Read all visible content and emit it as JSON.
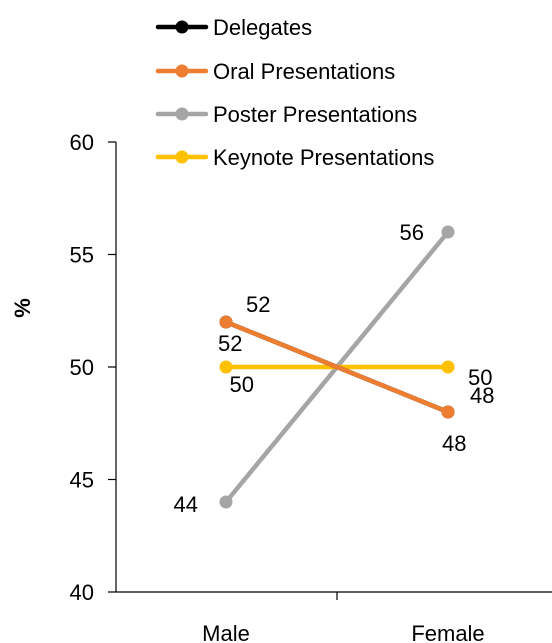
{
  "chart_data": {
    "type": "line",
    "title": "",
    "xlabel": "",
    "ylabel": "%",
    "categories": [
      "Male",
      "Female"
    ],
    "ylim": [
      40,
      60
    ],
    "yticks": [
      40,
      45,
      50,
      55,
      60
    ],
    "grid": false,
    "legend_position": "top",
    "series": [
      {
        "name": "Delegates",
        "values": [
          52,
          48
        ],
        "color": "#000000",
        "labels": [
          "52",
          "48"
        ]
      },
      {
        "name": "Oral Presentations",
        "values": [
          52,
          48
        ],
        "color": "#ED7D31",
        "labels": [
          "52",
          "48"
        ]
      },
      {
        "name": "Poster Presentations",
        "values": [
          44,
          56
        ],
        "color": "#A5A5A5",
        "labels": [
          "44",
          "56"
        ]
      },
      {
        "name": "Keynote Presentations",
        "values": [
          50,
          50
        ],
        "color": "#FFC000",
        "labels": [
          "50",
          "50"
        ]
      }
    ]
  }
}
